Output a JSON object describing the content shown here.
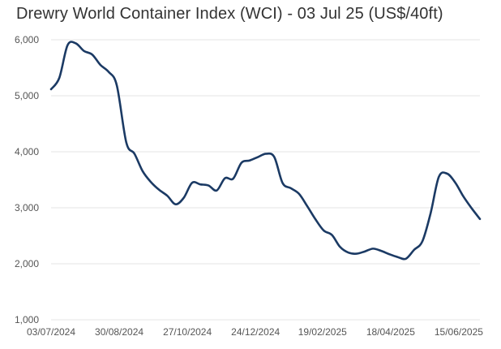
{
  "chart_data": {
    "type": "line",
    "title": "Drewry World Container Index (WCI) - 03 Jul 25 (US$/40ft)",
    "xlabel": "",
    "ylabel": "",
    "ylim": [
      1000,
      6000
    ],
    "xlim": [
      "2024-07-03",
      "2025-07-03"
    ],
    "grid": true,
    "legend": "none",
    "y_ticks": [
      1000,
      2000,
      3000,
      4000,
      5000,
      6000
    ],
    "y_tick_labels": [
      "1,000",
      "2,000",
      "3,000",
      "4,000",
      "5,000",
      "6,000"
    ],
    "x_ticks": [
      "2024-07-03",
      "2024-08-30",
      "2024-10-27",
      "2024-12-24",
      "2025-02-19",
      "2025-04-18",
      "2025-06-15"
    ],
    "x_tick_labels": [
      "03/07/2024",
      "30/08/2024",
      "27/10/2024",
      "24/12/2024",
      "19/02/2025",
      "18/04/2025",
      "15/06/2025"
    ],
    "line_color": "#1b3a64",
    "series": [
      {
        "x": [
          "2024-07-03",
          "2024-07-10",
          "2024-07-17",
          "2024-07-24",
          "2024-07-31",
          "2024-08-07",
          "2024-08-14",
          "2024-08-21",
          "2024-08-28",
          "2024-09-05",
          "2024-09-12",
          "2024-09-19",
          "2024-09-26",
          "2024-10-03",
          "2024-10-10",
          "2024-10-17",
          "2024-10-24",
          "2024-10-31",
          "2024-11-07",
          "2024-11-14",
          "2024-11-21",
          "2024-11-28",
          "2024-12-05",
          "2024-12-12",
          "2024-12-19",
          "2024-12-26",
          "2025-01-02",
          "2025-01-09",
          "2025-01-16",
          "2025-01-23",
          "2025-01-30",
          "2025-02-06",
          "2025-02-13",
          "2025-02-20",
          "2025-02-27",
          "2025-03-06",
          "2025-03-13",
          "2025-03-20",
          "2025-03-27",
          "2025-04-03",
          "2025-04-10",
          "2025-04-17",
          "2025-04-24",
          "2025-05-01",
          "2025-05-08",
          "2025-05-15",
          "2025-05-22",
          "2025-05-29",
          "2025-06-05",
          "2025-06-12",
          "2025-06-19",
          "2025-06-26",
          "2025-07-03"
        ],
        "values": [
          5117,
          5319,
          5901,
          5937,
          5800,
          5736,
          5551,
          5426,
          5181,
          4168,
          3964,
          3651,
          3459,
          3320,
          3213,
          3062,
          3180,
          3446,
          3418,
          3398,
          3309,
          3528,
          3520,
          3803,
          3844,
          3905,
          3964,
          3905,
          3444,
          3350,
          3250,
          3030,
          2795,
          2595,
          2515,
          2300,
          2200,
          2180,
          2220,
          2270,
          2230,
          2170,
          2120,
          2090,
          2250,
          2400,
          2900,
          3550,
          3610,
          3450,
          3200,
          2990,
          2800
        ]
      }
    ]
  }
}
